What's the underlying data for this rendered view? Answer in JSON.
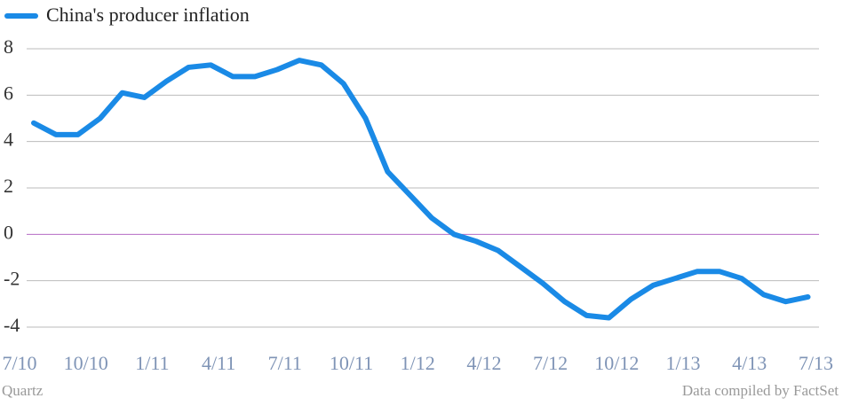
{
  "chart_data": {
    "type": "line",
    "categories": [
      "7/10",
      null,
      null,
      "10/10",
      null,
      null,
      "1/11",
      null,
      null,
      "4/11",
      null,
      null,
      "7/11",
      null,
      null,
      "10/11",
      null,
      null,
      "1/12",
      null,
      null,
      "4/12",
      null,
      null,
      "7/12",
      null,
      null,
      "10/12",
      null,
      null,
      "1/13",
      null,
      null,
      "4/13",
      null,
      null,
      "7/13"
    ],
    "series": [
      {
        "name": "China's producer inflation",
        "color": "#1a8ae6",
        "values": [
          4.8,
          4.3,
          4.3,
          5.0,
          6.1,
          5.9,
          6.6,
          7.2,
          7.3,
          6.8,
          6.8,
          7.1,
          7.5,
          7.3,
          6.5,
          5.0,
          2.7,
          1.7,
          0.7,
          0.0,
          -0.3,
          -0.7,
          -1.4,
          -2.1,
          -2.9,
          -3.5,
          -3.6,
          -2.8,
          -2.2,
          -1.9,
          -1.6,
          -1.6,
          -1.9,
          -2.6,
          -2.9,
          -2.7,
          null
        ]
      }
    ],
    "ylim": [
      -4,
      8
    ],
    "yticks": [
      8,
      6,
      4,
      2,
      0,
      -2,
      -4
    ],
    "grid": true,
    "zero_line_color": "#b56cc4",
    "source": "Quartz",
    "credit": "Data compiled by FactSet"
  }
}
